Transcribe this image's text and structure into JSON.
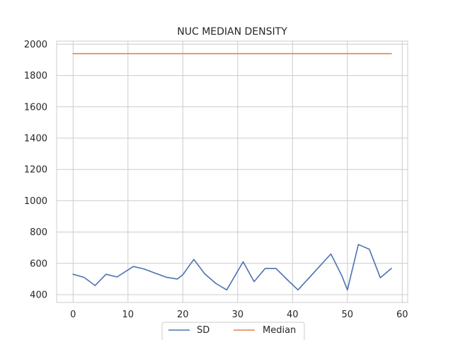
{
  "chart_data": {
    "type": "line",
    "title": "NUC MEDIAN DENSITY",
    "xlabel": "",
    "ylabel": "",
    "xlim": [
      -3,
      61
    ],
    "ylim": [
      350,
      2020
    ],
    "xticks": [
      0,
      10,
      20,
      30,
      40,
      50,
      60
    ],
    "yticks": [
      400,
      600,
      800,
      1000,
      1200,
      1400,
      1600,
      1800,
      2000
    ],
    "grid": true,
    "legend_position": "bottom-center",
    "series": [
      {
        "name": "SD",
        "color": "#4c72b0",
        "x": [
          0,
          2,
          4,
          6,
          8,
          11,
          13,
          15,
          17,
          19,
          20,
          22,
          24,
          26,
          28,
          31,
          33,
          35,
          37,
          39,
          41,
          44,
          47,
          49,
          50,
          52,
          54,
          56,
          58
        ],
        "y": [
          530,
          510,
          458,
          530,
          513,
          580,
          563,
          537,
          511,
          500,
          527,
          625,
          533,
          472,
          430,
          610,
          483,
          567,
          567,
          497,
          430,
          545,
          660,
          520,
          430,
          720,
          690,
          508,
          567
        ]
      },
      {
        "name": "Median",
        "color": "#dd8452",
        "x": [
          0,
          58
        ],
        "y": [
          1940,
          1940
        ]
      }
    ]
  }
}
